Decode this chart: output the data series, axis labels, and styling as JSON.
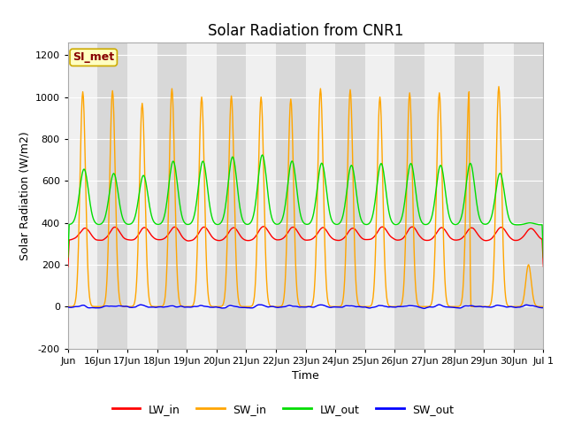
{
  "title": "Solar Radiation from CNR1",
  "xlabel": "Time",
  "ylabel": "Solar Radiation (W/m2)",
  "ylim": [
    -200,
    1260
  ],
  "yticks": [
    -200,
    0,
    200,
    400,
    600,
    800,
    1000,
    1200
  ],
  "annotation": "SI_met",
  "line_colors": {
    "LW_in": "#ff0000",
    "SW_in": "#ffa500",
    "LW_out": "#00dd00",
    "SW_out": "#0000ff"
  },
  "legend_labels": [
    "LW_in",
    "SW_in",
    "LW_out",
    "SW_out"
  ],
  "plot_bg_color": "#f0f0f0",
  "grid_color": "#ffffff",
  "title_fontsize": 12,
  "label_fontsize": 9,
  "tick_fontsize": 8,
  "annotation_color": "#880000",
  "annotation_bg": "#ffffc0",
  "annotation_edge": "#ccaa00"
}
